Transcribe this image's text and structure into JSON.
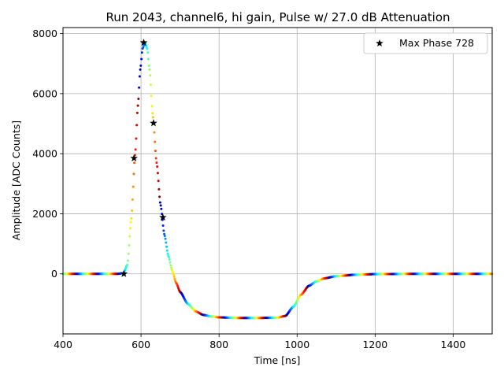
{
  "chart_data": {
    "type": "scatter",
    "title": "Run 2043, channel6, hi gain, Pulse w/ 27.0 dB Attenuation",
    "xlabel": "Time [ns]",
    "ylabel": "Amplitude [ADC Counts]",
    "xlim": [
      400,
      1500
    ],
    "ylim": [
      -2000,
      8200
    ],
    "xticks": [
      400,
      600,
      800,
      1000,
      1200,
      1400
    ],
    "yticks": [
      0,
      2000,
      4000,
      6000,
      8000
    ],
    "grid": true,
    "legend_position": "top-right",
    "waveform": {
      "x": [
        400,
        540,
        555,
        565,
        575,
        585,
        592,
        598,
        604,
        610,
        616,
        622,
        630,
        640,
        650,
        660,
        670,
        680,
        690,
        700,
        720,
        740,
        760,
        780,
        800,
        850,
        900,
        950,
        970,
        990,
        1010,
        1030,
        1050,
        1070,
        1100,
        1150,
        1200,
        1300,
        1400,
        1500
      ],
      "y": [
        0,
        0,
        20,
        300,
        1800,
        4000,
        5600,
        6800,
        7500,
        7700,
        7500,
        6800,
        5300,
        3700,
        2300,
        1300,
        600,
        100,
        -300,
        -600,
        -1000,
        -1250,
        -1370,
        -1420,
        -1450,
        -1470,
        -1470,
        -1460,
        -1400,
        -1100,
        -700,
        -400,
        -250,
        -150,
        -80,
        -30,
        -10,
        0,
        0,
        0
      ],
      "colormap": "jet"
    },
    "series": [
      {
        "name": "Max Phase 728",
        "x": [
          556,
          582,
          607,
          632,
          656
        ],
        "y": [
          0,
          3850,
          7700,
          5020,
          1880
        ],
        "marker": "star",
        "color": "#000000"
      }
    ]
  }
}
